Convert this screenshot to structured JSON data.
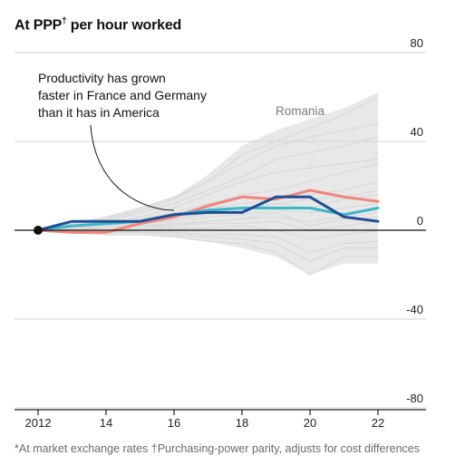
{
  "chart_title": "At PPP",
  "chart_title_mark": "†",
  "chart_title_rest": " per hour worked",
  "footnote": "*At market exchange rates †Purchasing-power parity, adjusts for cost differences",
  "annotation": [
    "Productivity has grown",
    "faster in France and Germany",
    "than it has in America"
  ],
  "band_label": "Romania",
  "colors": {
    "france": "#f0857a",
    "germany": "#3bb7c9",
    "america": "#1f4e96",
    "others": "#d9d9d9",
    "band": "#e8e8e8"
  },
  "chart_data": {
    "type": "line",
    "x": [
      2012,
      2013,
      2014,
      2015,
      2016,
      2017,
      2018,
      2019,
      2020,
      2021,
      2022
    ],
    "xticks": [
      2012,
      2014,
      2016,
      2018,
      2020,
      2022
    ],
    "xtick_labels": [
      "2012",
      "14",
      "16",
      "18",
      "20",
      "22"
    ],
    "yticks": [
      80,
      40,
      0,
      -40,
      -80
    ],
    "ytick_labels": [
      "80",
      "40",
      "0",
      "-40",
      "-80"
    ],
    "ylim": [
      -80,
      80
    ],
    "band_upper": [
      0,
      3,
      6,
      10,
      15,
      25,
      38,
      45,
      50,
      55,
      62
    ],
    "band_lower": [
      0,
      -1,
      -2,
      -2,
      -3,
      -5,
      -8,
      -12,
      -20,
      -15,
      -15
    ],
    "series": [
      {
        "key": "france",
        "values": [
          0,
          -1,
          -1,
          3,
          6,
          11,
          15,
          14,
          18,
          15,
          13
        ]
      },
      {
        "key": "germany",
        "values": [
          0,
          2,
          3,
          4,
          7,
          9,
          10,
          10,
          10,
          7,
          10
        ]
      },
      {
        "key": "america",
        "values": [
          0,
          4,
          4,
          4,
          7,
          8,
          8,
          15,
          15,
          6,
          4
        ]
      }
    ],
    "others": [
      [
        0,
        2,
        5,
        9,
        14,
        22,
        34,
        40,
        46,
        52,
        60
      ],
      [
        0,
        3,
        6,
        10,
        15,
        22,
        30,
        38,
        42,
        45,
        48
      ],
      [
        0,
        2,
        4,
        8,
        12,
        18,
        24,
        32,
        35,
        38,
        42
      ],
      [
        0,
        1,
        3,
        6,
        10,
        16,
        22,
        26,
        28,
        30,
        32
      ],
      [
        0,
        2,
        3,
        5,
        8,
        12,
        16,
        18,
        22,
        26,
        30
      ],
      [
        0,
        1,
        2,
        4,
        6,
        10,
        12,
        14,
        16,
        18,
        22
      ],
      [
        0,
        0,
        1,
        3,
        5,
        8,
        10,
        12,
        14,
        15,
        18
      ],
      [
        0,
        1,
        2,
        3,
        4,
        6,
        7,
        9,
        8,
        10,
        12
      ],
      [
        0,
        0,
        1,
        2,
        2,
        4,
        5,
        6,
        4,
        6,
        8
      ],
      [
        0,
        -1,
        0,
        1,
        2,
        3,
        3,
        4,
        0,
        2,
        4
      ],
      [
        0,
        0,
        -1,
        0,
        1,
        1,
        2,
        0,
        -4,
        -2,
        0
      ],
      [
        0,
        -1,
        -1,
        -1,
        -1,
        -2,
        -2,
        -3,
        -10,
        -6,
        -5
      ],
      [
        0,
        0,
        0,
        -1,
        -2,
        -3,
        -4,
        -6,
        -14,
        -8,
        -8
      ],
      [
        0,
        -1,
        -2,
        -2,
        -3,
        -5,
        -6,
        -10,
        -20,
        -12,
        -12
      ],
      [
        0,
        1,
        1,
        2,
        3,
        4,
        5,
        8,
        2,
        5,
        6
      ],
      [
        0,
        1,
        2,
        3,
        5,
        7,
        9,
        12,
        10,
        14,
        16
      ]
    ]
  }
}
